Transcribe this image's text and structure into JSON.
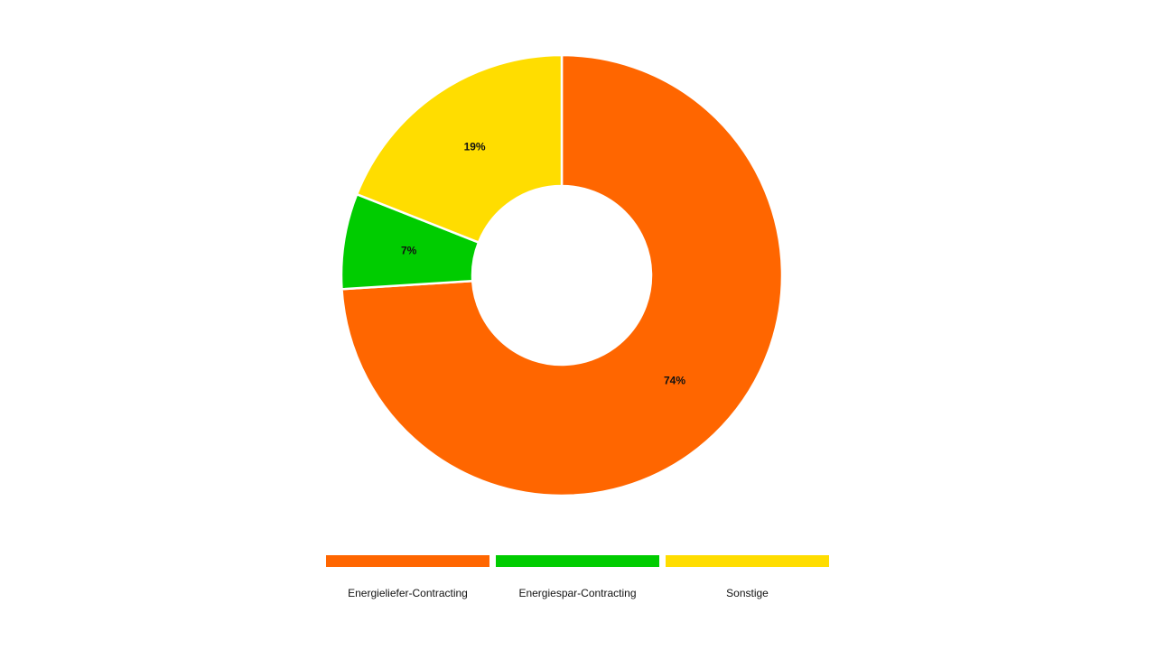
{
  "chart_data": {
    "type": "donut",
    "categories": [
      "Energieliefer-Contracting",
      "Energiespar-Contracting",
      "Sonstige"
    ],
    "values": [
      74,
      7,
      19
    ],
    "value_labels": [
      "74%",
      "7%",
      "19%"
    ],
    "colors": [
      "#ff6600",
      "#00cc00",
      "#ffdd00"
    ],
    "legend": "bottom"
  }
}
